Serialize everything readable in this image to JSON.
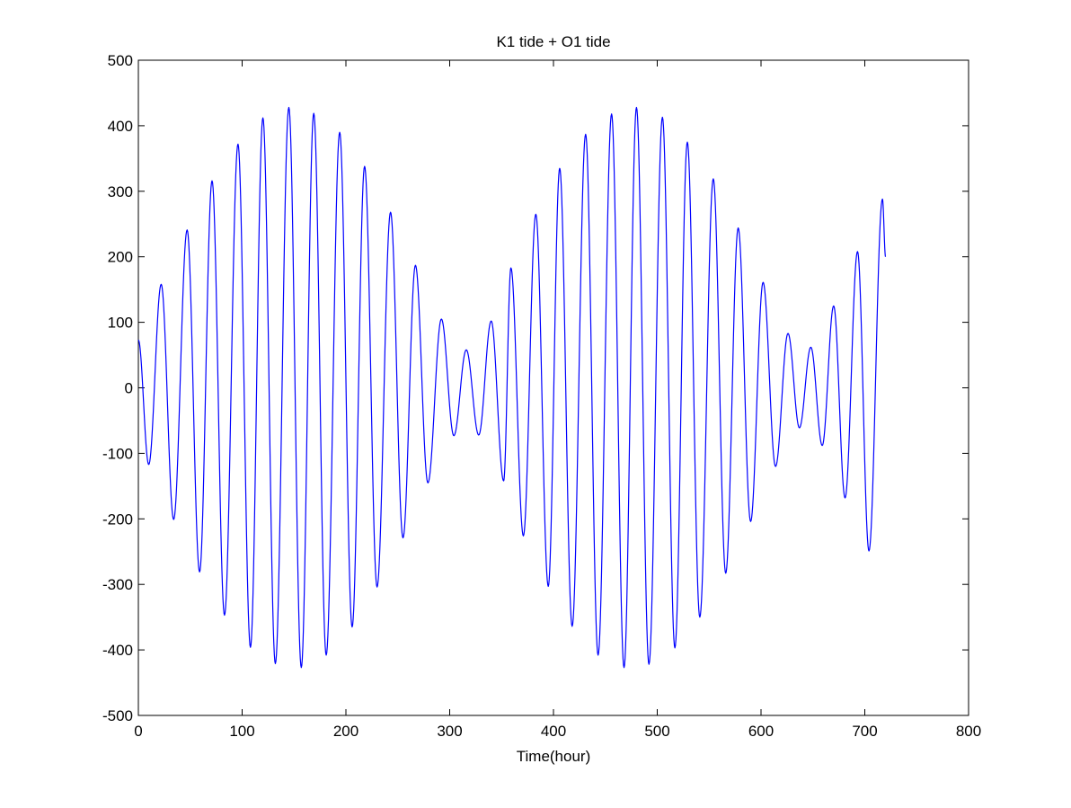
{
  "chart_data": {
    "type": "line",
    "title": "K1 tide + O1 tide",
    "xlabel": "Time(hour)",
    "ylabel": "",
    "xlim": [
      0,
      800
    ],
    "ylim": [
      -500,
      500
    ],
    "xticks": [
      0,
      100,
      200,
      300,
      400,
      500,
      600,
      700,
      800
    ],
    "yticks": [
      -500,
      -400,
      -300,
      -200,
      -100,
      0,
      100,
      200,
      300,
      400,
      500
    ],
    "xtick_labels": [
      "0",
      "100",
      "200",
      "300",
      "400",
      "500",
      "600",
      "700",
      "800"
    ],
    "ytick_labels": [
      "-500",
      "-400",
      "-300",
      "-200",
      "-100",
      "0",
      "100",
      "200",
      "300",
      "400",
      "500"
    ],
    "grid": false,
    "legend": "none",
    "series": [
      {
        "color": "#0000ff",
        "x": [
          0,
          10,
          22,
          34,
          47,
          59,
          71,
          83,
          96,
          108,
          120,
          132,
          145,
          157,
          169,
          181,
          194,
          206,
          218,
          230,
          243,
          255,
          267,
          279,
          292,
          304,
          316,
          328,
          340,
          352,
          359,
          371,
          383,
          395,
          406,
          418,
          431,
          443,
          456,
          468,
          480,
          492,
          505,
          517,
          529,
          541,
          554,
          566,
          578,
          590,
          602,
          614,
          626,
          637,
          648,
          659,
          670,
          681,
          693,
          704,
          717,
          720
        ],
        "y": [
          73,
          -117,
          158,
          -201,
          241,
          -281,
          316,
          -347,
          372,
          -396,
          412,
          -421,
          428,
          -427,
          419,
          -408,
          390,
          -365,
          338,
          -304,
          268,
          -229,
          187,
          -145,
          105,
          -73,
          58,
          -72,
          102,
          -142,
          183,
          -226,
          265,
          -303,
          335,
          -364,
          387,
          -408,
          418,
          -427,
          428,
          -422,
          413,
          -397,
          375,
          -350,
          319,
          -283,
          244,
          -204,
          161,
          -120,
          83,
          -61,
          62,
          -88,
          125,
          -168,
          208,
          -249,
          288,
          200
        ]
      }
    ]
  }
}
